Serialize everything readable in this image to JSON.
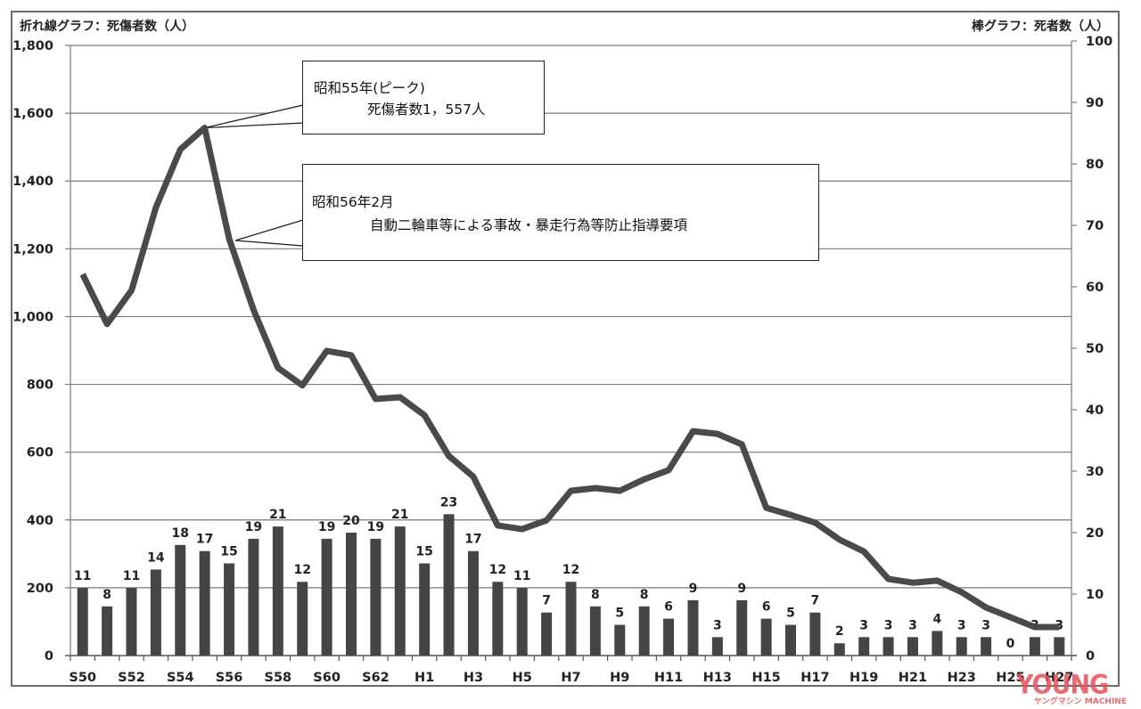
{
  "titles": {
    "left_axis": "折れ線グラフ：死傷者数（人）",
    "right_axis": "棒グラフ：死者数（人）"
  },
  "callouts": [
    {
      "line1": "昭和55年(ピーク)",
      "line2": "死傷者数1，557人"
    },
    {
      "line1": "昭和56年2月",
      "line2": "自動二輪車等による事故・暴走行為等防止指導要項"
    }
  ],
  "watermark": {
    "text": "YOUNG",
    "sub": "ヤングマシン MACHINE",
    "color": "#e8505b"
  },
  "colors": {
    "line": "#4a4a4a",
    "bar": "#454545",
    "grid": "#7a7a7a",
    "frame": "#6a6a6a"
  },
  "chart_data": {
    "type": "bar+line",
    "title": "",
    "categories": [
      "S50",
      "S51",
      "S52",
      "S53",
      "S54",
      "S55",
      "S56",
      "S57",
      "S58",
      "S59",
      "S60",
      "S61",
      "S62",
      "S63",
      "H1",
      "H2",
      "H3",
      "H4",
      "H5",
      "H6",
      "H7",
      "H8",
      "H9",
      "H10",
      "H11",
      "H12",
      "H13",
      "H14",
      "H15",
      "H16",
      "H17",
      "H18",
      "H19",
      "H20",
      "H21",
      "H22",
      "H23",
      "H24",
      "H25",
      "H26",
      "H27"
    ],
    "tick_labels_shown": [
      "S50",
      "S52",
      "S54",
      "S56",
      "S58",
      "S60",
      "S62",
      "H1",
      "H3",
      "H5",
      "H7",
      "H9",
      "H11",
      "H13",
      "H15",
      "H17",
      "H19",
      "H21",
      "H23",
      "H25",
      "H27"
    ],
    "series": [
      {
        "name": "死傷者数（人）",
        "type": "line",
        "axis": "left",
        "values": [
          1125,
          978,
          1077,
          1322,
          1493,
          1557,
          1230,
          1020,
          849,
          797,
          899,
          886,
          757,
          762,
          709,
          589,
          528,
          384,
          373,
          399,
          486,
          494,
          486,
          520,
          547,
          662,
          654,
          623,
          436,
          415,
          392,
          342,
          307,
          226,
          215,
          221,
          187,
          142,
          113,
          84,
          84
        ]
      },
      {
        "name": "死者数（人）",
        "type": "bar",
        "axis": "right",
        "values": [
          11,
          8,
          11,
          14,
          18,
          17,
          15,
          19,
          21,
          12,
          19,
          20,
          19,
          21,
          15,
          23,
          17,
          12,
          11,
          7,
          12,
          8,
          5,
          8,
          6,
          9,
          3,
          9,
          6,
          5,
          7,
          2,
          3,
          3,
          3,
          4,
          3,
          3,
          0,
          3,
          3
        ]
      }
    ],
    "left_axis": {
      "label": "折れ線グラフ：死傷者数（人）",
      "ylim": [
        0,
        1800
      ],
      "ticks": [
        "0",
        "200",
        "400",
        "600",
        "800",
        "1,000",
        "1,200",
        "1,400",
        "1,600",
        "1,800"
      ]
    },
    "right_axis": {
      "label": "棒グラフ：死者数（人）",
      "ylim": [
        0,
        100
      ],
      "ticks": [
        "0",
        "10",
        "20",
        "30",
        "40",
        "50",
        "60",
        "70",
        "80",
        "90",
        "100"
      ]
    },
    "grid": true,
    "legend": "none",
    "annotations": [
      {
        "at": "S55",
        "text": "昭和55年(ピーク) 死傷者数1，557人"
      },
      {
        "at": "S56",
        "text": "昭和56年2月 自動二輪車等による事故・暴走行為等防止指導要項"
      }
    ]
  }
}
